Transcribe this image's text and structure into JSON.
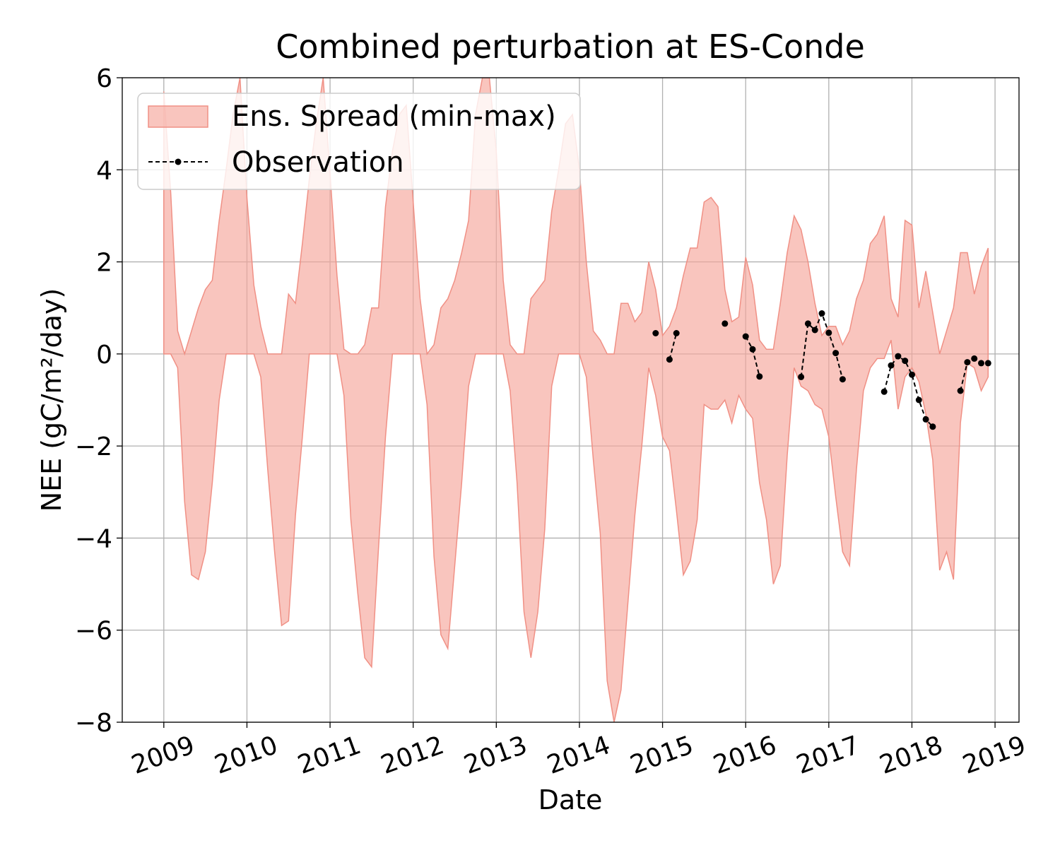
{
  "chart_data": {
    "type": "area",
    "title": "Combined perturbation at ES-Conde",
    "xlabel": "Date",
    "ylabel": "NEE  (gC/m²/day)",
    "ylim": [
      -8,
      6
    ],
    "xlim": [
      "2008-07-01",
      "2019-04-15"
    ],
    "grid": true,
    "legend_position": "top-left",
    "x_ticks": [
      "2009",
      "2010",
      "2011",
      "2012",
      "2013",
      "2014",
      "2015",
      "2016",
      "2017",
      "2018",
      "2019"
    ],
    "y_ticks": [
      6,
      4,
      2,
      0,
      -2,
      -4,
      -6,
      -8
    ],
    "series": [
      {
        "name": "Ens. Spread (min-max)",
        "kind": "band",
        "color": "#f6a69b",
        "x": [
          "2009-01",
          "2009-02",
          "2009-03",
          "2009-04",
          "2009-05",
          "2009-06",
          "2009-07",
          "2009-08",
          "2009-09",
          "2009-10",
          "2009-11",
          "2009-12",
          "2010-01",
          "2010-02",
          "2010-03",
          "2010-04",
          "2010-05",
          "2010-06",
          "2010-07",
          "2010-08",
          "2010-09",
          "2010-10",
          "2010-11",
          "2010-12",
          "2011-01",
          "2011-02",
          "2011-03",
          "2011-04",
          "2011-05",
          "2011-06",
          "2011-07",
          "2011-08",
          "2011-09",
          "2011-10",
          "2011-11",
          "2011-12",
          "2012-01",
          "2012-02",
          "2012-03",
          "2012-04",
          "2012-05",
          "2012-06",
          "2012-07",
          "2012-08",
          "2012-09",
          "2012-10",
          "2012-11",
          "2012-12",
          "2013-01",
          "2013-02",
          "2013-03",
          "2013-04",
          "2013-05",
          "2013-06",
          "2013-07",
          "2013-08",
          "2013-09",
          "2013-10",
          "2013-11",
          "2013-12",
          "2014-01",
          "2014-02",
          "2014-03",
          "2014-04",
          "2014-05",
          "2014-06",
          "2014-07",
          "2014-08",
          "2014-09",
          "2014-10",
          "2014-11",
          "2014-12",
          "2015-01",
          "2015-02",
          "2015-03",
          "2015-04",
          "2015-05",
          "2015-06",
          "2015-07",
          "2015-08",
          "2015-09",
          "2015-10",
          "2015-11",
          "2015-12",
          "2016-01",
          "2016-02",
          "2016-03",
          "2016-04",
          "2016-05",
          "2016-06",
          "2016-07",
          "2016-08",
          "2016-09",
          "2016-10",
          "2016-11",
          "2016-12",
          "2017-01",
          "2017-02",
          "2017-03",
          "2017-04",
          "2017-05",
          "2017-06",
          "2017-07",
          "2017-08",
          "2017-09",
          "2017-10",
          "2017-11",
          "2017-12",
          "2018-01",
          "2018-02",
          "2018-03",
          "2018-04",
          "2018-05",
          "2018-06",
          "2018-07",
          "2018-08",
          "2018-09",
          "2018-10",
          "2018-11",
          "2018-12"
        ],
        "upper": [
          5.7,
          3.5,
          0.5,
          0.0,
          0.5,
          1.0,
          1.4,
          1.6,
          2.9,
          4.0,
          5.2,
          6.0,
          3.4,
          1.5,
          0.6,
          0.0,
          0.0,
          0.0,
          1.3,
          1.1,
          2.4,
          3.8,
          5.0,
          6.0,
          3.9,
          1.7,
          0.1,
          0.0,
          0.0,
          0.2,
          1.0,
          1.0,
          3.2,
          4.4,
          5.2,
          5.4,
          3.3,
          1.2,
          0.0,
          0.2,
          1.0,
          1.2,
          1.6,
          2.2,
          2.9,
          5.2,
          6.0,
          6.0,
          4.4,
          1.6,
          0.2,
          0.0,
          0.0,
          1.2,
          1.4,
          1.6,
          3.1,
          4.0,
          5.0,
          5.2,
          4.0,
          2.0,
          0.5,
          0.3,
          0.0,
          0.0,
          1.1,
          1.1,
          0.7,
          0.9,
          2.0,
          1.4,
          0.4,
          0.6,
          1.0,
          1.7,
          2.3,
          2.3,
          3.3,
          3.4,
          3.2,
          1.4,
          0.7,
          0.8,
          2.1,
          1.5,
          0.3,
          0.1,
          0.1,
          1.1,
          2.2,
          3.0,
          2.7,
          2.0,
          1.1,
          0.4,
          0.6,
          0.6,
          0.2,
          0.5,
          1.2,
          1.6,
          2.4,
          2.6,
          3.0,
          1.2,
          0.8,
          2.9,
          2.8,
          1.0,
          1.8,
          0.9,
          0.0,
          0.5,
          1.0,
          2.2,
          2.2,
          1.3,
          1.9,
          2.3
        ],
        "lower": [
          0.0,
          0.0,
          -0.3,
          -3.2,
          -4.8,
          -4.9,
          -4.3,
          -2.8,
          -1.0,
          0.0,
          0.0,
          0.0,
          0.0,
          0.0,
          -0.5,
          -2.5,
          -4.3,
          -5.9,
          -5.8,
          -3.5,
          -1.8,
          0.0,
          0.0,
          0.0,
          0.0,
          0.0,
          -0.9,
          -3.6,
          -5.2,
          -6.6,
          -6.8,
          -4.2,
          -1.8,
          0.0,
          0.0,
          0.0,
          0.0,
          0.0,
          -1.1,
          -4.4,
          -6.1,
          -6.4,
          -4.6,
          -2.8,
          -0.7,
          0.0,
          0.0,
          0.0,
          0.0,
          0.0,
          -0.8,
          -2.8,
          -5.6,
          -6.6,
          -5.6,
          -3.8,
          -0.7,
          0.0,
          0.0,
          0.0,
          0.0,
          -0.5,
          -2.3,
          -3.9,
          -7.1,
          -8.0,
          -7.3,
          -5.4,
          -3.5,
          -2.0,
          -0.3,
          -0.9,
          -1.8,
          -2.1,
          -3.4,
          -4.8,
          -4.5,
          -3.6,
          -1.1,
          -1.2,
          -1.2,
          -1.0,
          -1.5,
          -0.9,
          -1.2,
          -1.4,
          -2.8,
          -3.6,
          -5.0,
          -4.6,
          -2.2,
          -0.3,
          -0.7,
          -0.8,
          -1.1,
          -1.2,
          -1.8,
          -3.1,
          -4.3,
          -4.6,
          -2.5,
          -0.8,
          -0.3,
          -0.1,
          -0.1,
          0.3,
          -1.2,
          -0.5,
          -0.3,
          -0.6,
          -1.3,
          -2.3,
          -4.7,
          -4.3,
          -4.9,
          -1.5,
          -0.2,
          -0.3,
          -0.8,
          -0.5
        ]
      },
      {
        "name": "Observation",
        "kind": "line-markers",
        "color": "#000000",
        "segments": [
          {
            "x": [
              "2014-12"
            ],
            "y": [
              0.45
            ]
          },
          {
            "x": [
              "2015-02",
              "2015-03"
            ],
            "y": [
              -0.12,
              0.45
            ]
          },
          {
            "x": [
              "2015-10"
            ],
            "y": [
              0.66
            ]
          },
          {
            "x": [
              "2016-01",
              "2016-02",
              "2016-03"
            ],
            "y": [
              0.38,
              0.1,
              -0.49
            ]
          },
          {
            "x": [
              "2016-09",
              "2016-10",
              "2016-11",
              "2016-12",
              "2017-01",
              "2017-02",
              "2017-03"
            ],
            "y": [
              -0.5,
              0.66,
              0.52,
              0.88,
              0.46,
              0.02,
              -0.55
            ]
          },
          {
            "x": [
              "2017-09",
              "2017-10",
              "2017-11",
              "2017-12",
              "2018-01",
              "2018-02",
              "2018-03",
              "2018-04"
            ],
            "y": [
              -0.82,
              -0.25,
              -0.05,
              -0.15,
              -0.45,
              -1.0,
              -1.42,
              -1.58
            ]
          },
          {
            "x": [
              "2018-08",
              "2018-09",
              "2018-10",
              "2018-11",
              "2018-12"
            ],
            "y": [
              -0.8,
              -0.18,
              -0.1,
              -0.2,
              -0.2
            ]
          }
        ]
      }
    ]
  }
}
